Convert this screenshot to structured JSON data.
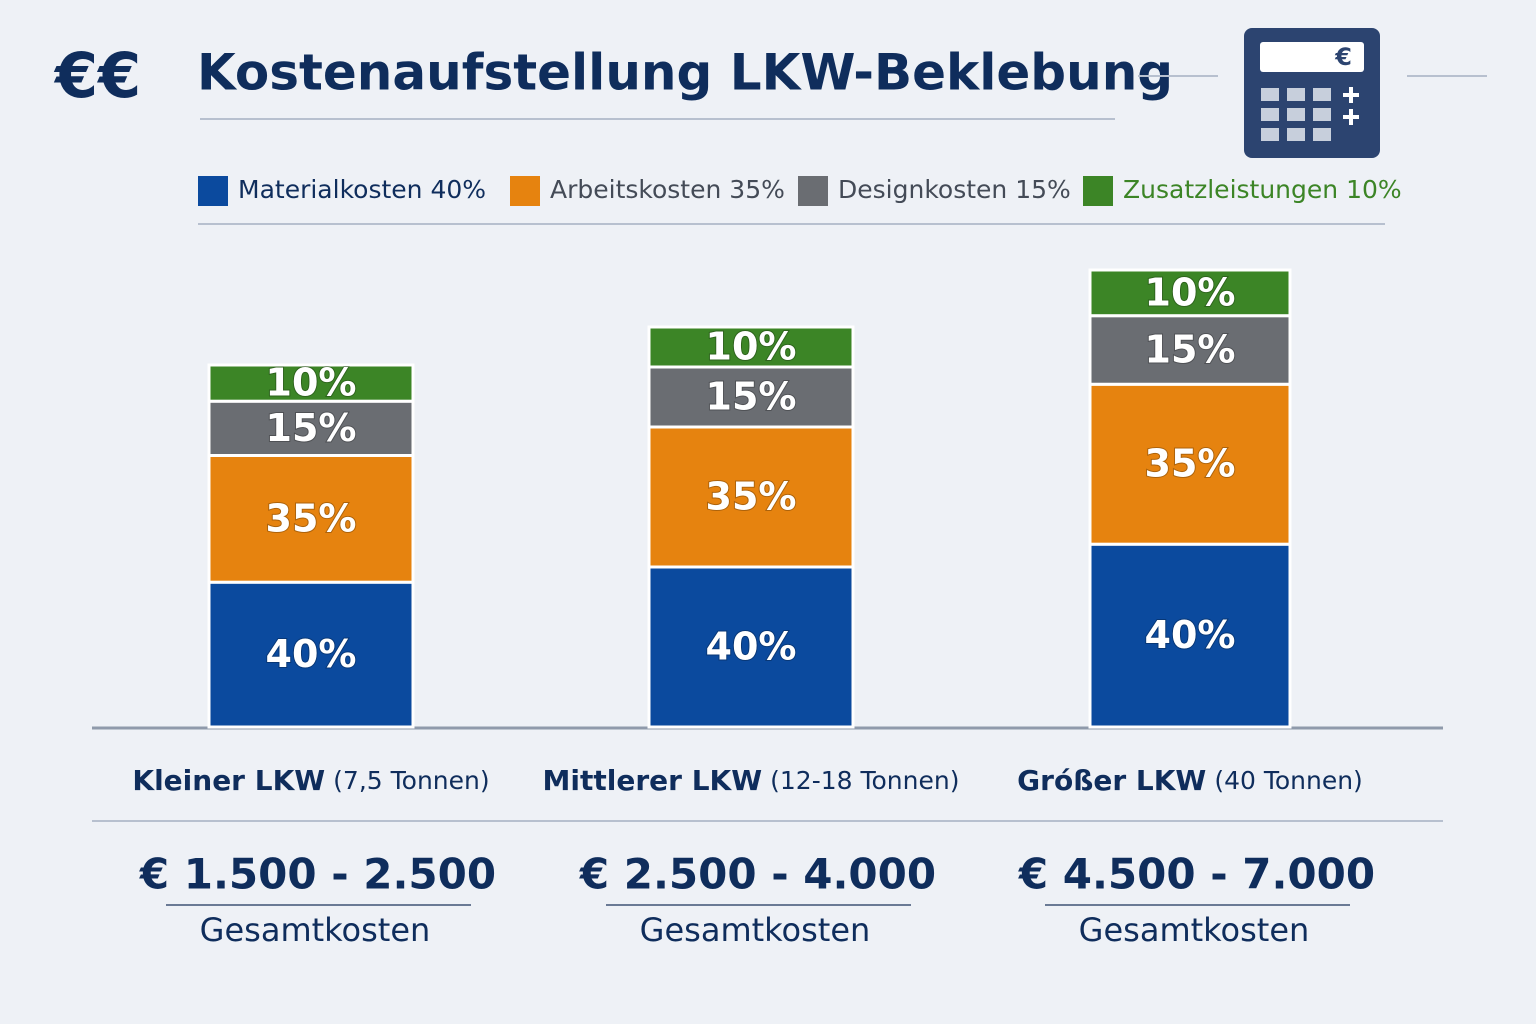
{
  "chart_data": {
    "type": "bar",
    "stacked": true,
    "title_icon": "€€",
    "title": "Kostenaufstellung LKW-Beklebung",
    "icon_label": "€",
    "categories": [
      "Kleiner LKW",
      "Mittlerer LKW",
      "Gróßer LKW"
    ],
    "category_details": [
      "(7,5 Tonnen)",
      "(12-18 Tonnen)",
      "(40 Tonnen)"
    ],
    "totals": [
      "€ 1.500 - 2.500",
      "€ 2.500 - 4.000",
      "€ 4.500 - 7.000"
    ],
    "total_label": "Gesamtkosten",
    "series": [
      {
        "name": "Materialkosten 40%",
        "color": "#0b4a9e",
        "values": [
          40,
          40,
          40
        ],
        "value_labels": [
          "40%",
          "40%",
          "40%"
        ]
      },
      {
        "name": "Arbeitskosten 35%",
        "color": "#e6830f",
        "values": [
          35,
          35,
          35
        ],
        "value_labels": [
          "35%",
          "35%",
          "35%"
        ]
      },
      {
        "name": "Designkosten 15%",
        "color": "#6a6d72",
        "values": [
          15,
          15,
          15
        ],
        "value_labels": [
          "15%",
          "15%",
          "15%"
        ]
      },
      {
        "name": "Zusatzleistungen 10%",
        "color": "#3c8526",
        "values": [
          10,
          10,
          10
        ],
        "value_labels": [
          "10%",
          "10%",
          "10%"
        ]
      }
    ]
  }
}
